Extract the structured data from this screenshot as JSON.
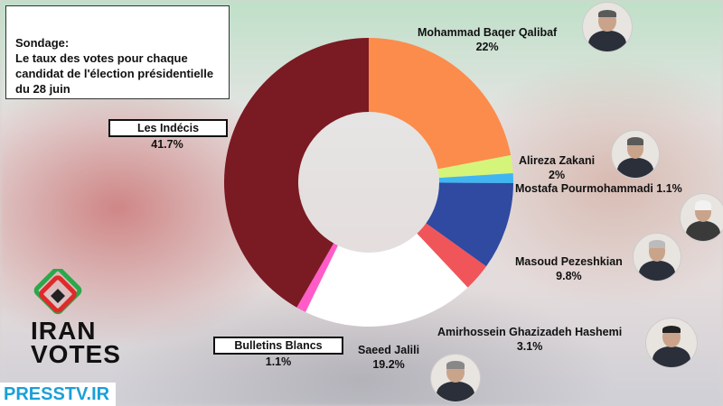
{
  "title": {
    "line1": "Sondage:",
    "line2": "Le taux des votes pour chaque candidat de l'élection présidentielle du 28 juin"
  },
  "chart_data": {
    "type": "pie",
    "donut": true,
    "slices": [
      {
        "name": "Mohammad Baqer Qalibaf",
        "label": "22%",
        "value": 22,
        "color": "#fb8c4c"
      },
      {
        "name": "Alireza Zakani",
        "label": "2%",
        "value": 2,
        "color": "#d4f57a"
      },
      {
        "name": "Mostafa Pourmohammadi",
        "label": "1.1%",
        "value": 1.1,
        "color": "#3fb6f2"
      },
      {
        "name": "Masoud Pezeshkian",
        "label": "9.8%",
        "value": 9.8,
        "color": "#2f4aa0"
      },
      {
        "name": "Amirhossein Ghazizadeh Hashemi",
        "label": "3.1%",
        "value": 3.1,
        "color": "#f0555a"
      },
      {
        "name": "Saeed Jalili",
        "label": "19.2%",
        "value": 19.2,
        "color": "#ffffff"
      },
      {
        "name": "Bulletins Blancs",
        "label": "1.1%",
        "value": 1.1,
        "color": "#ff5cc8"
      },
      {
        "name": "Les Indécis",
        "label": "41.7%",
        "value": 41.7,
        "color": "#7a1a22"
      }
    ]
  },
  "logo": {
    "line1": "IRAN",
    "line2": "VOTES"
  },
  "footer": {
    "brand": "PRESSTV.IR"
  }
}
